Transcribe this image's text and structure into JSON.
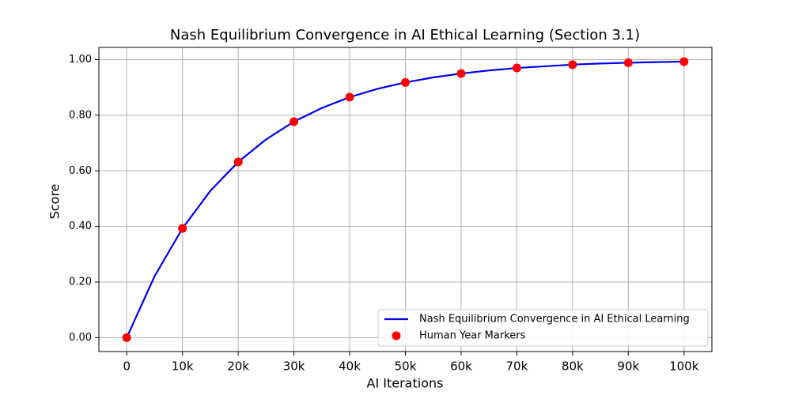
{
  "chart_data": {
    "type": "line",
    "title": "Nash Equilibrium Convergence in AI Ethical Learning (Section 3.1)",
    "x_label": "AI Iterations",
    "y_label": "Score",
    "xlim": [
      -5000,
      105000
    ],
    "ylim": [
      -0.05,
      1.044
    ],
    "xticks": [
      0,
      {
        "value": 10000,
        "label": "10k"
      },
      {
        "value": 20000,
        "label": "20k"
      },
      {
        "value": 30000,
        "label": "30k"
      },
      {
        "value": 40000,
        "label": "40k"
      },
      {
        "value": 50000,
        "label": "50k"
      },
      {
        "value": 60000,
        "label": "60k"
      },
      {
        "value": 70000,
        "label": "70k"
      },
      {
        "value": 80000,
        "label": "80k"
      },
      {
        "value": 90000,
        "label": "90k"
      },
      {
        "value": 100000,
        "label": "100k"
      }
    ],
    "yticks": [
      {
        "value": 0,
        "label": "0.00"
      },
      {
        "value": 0.2,
        "label": "0.20"
      },
      {
        "value": 0.4,
        "label": "0.40"
      },
      {
        "value": 0.6,
        "label": "0.60"
      },
      {
        "value": 0.8,
        "label": "0.80"
      },
      {
        "value": 1,
        "label": "1.00"
      }
    ],
    "grid": true,
    "legend": "lower right",
    "series": [
      {
        "name": "Nash Equilibrium Convergence in AI Ethical Learning",
        "type": "line",
        "color": "#0000ee",
        "x": [
          0,
          5000,
          10000,
          15000,
          20000,
          25000,
          30000,
          35000,
          40000,
          45000,
          50000,
          55000,
          60000,
          65000,
          70000,
          75000,
          80000,
          85000,
          90000,
          95000,
          100000
        ],
        "values": [
          0,
          0.221,
          0.393,
          0.528,
          0.632,
          0.713,
          0.777,
          0.826,
          0.865,
          0.895,
          0.918,
          0.936,
          0.95,
          0.961,
          0.97,
          0.976,
          0.982,
          0.986,
          0.989,
          0.991,
          0.993
        ]
      },
      {
        "name": "Human Year Markers",
        "type": "scatter",
        "color": "#ff0000",
        "x": [
          0,
          10000,
          20000,
          30000,
          40000,
          50000,
          60000,
          70000,
          80000,
          90000,
          100000
        ],
        "values": [
          0,
          0.393,
          0.632,
          0.777,
          0.865,
          0.918,
          0.95,
          0.97,
          0.982,
          0.989,
          0.993
        ]
      }
    ]
  }
}
